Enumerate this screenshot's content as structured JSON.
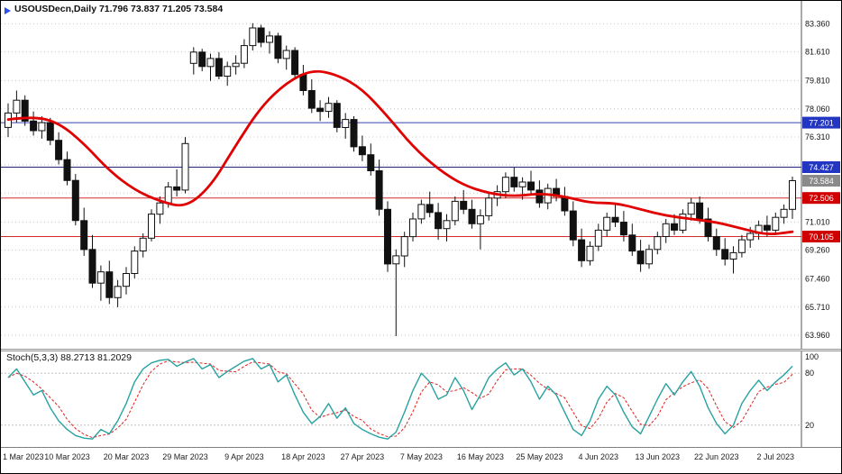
{
  "window": {
    "background": "#ffffff",
    "border": "#000000"
  },
  "header": {
    "title": "USOUSDecn,Daily",
    "values": "71.796 73.837 71.205 73.584",
    "marker_color": "#2b50f0"
  },
  "indicator_label": {
    "name": "Stoch(5,3,3)",
    "main_value": "88.2713",
    "signal_value": "81.2029"
  },
  "chart_data": [
    {
      "type": "candlestick",
      "title": "USOUSDecn,Daily",
      "ohlc_display": {
        "open": "71.796",
        "high": "73.837",
        "low": "71.205",
        "close": "73.584"
      },
      "ylim": [
        63.45,
        84.45
      ],
      "grid_on": true,
      "grid_values": [
        83.36,
        81.61,
        79.81,
        78.06,
        76.31,
        74.56,
        72.81,
        71.01,
        69.26,
        67.46,
        65.71,
        63.96
      ],
      "colors": {
        "bull": "#ffffff",
        "bear": "#111111",
        "outline": "#111111",
        "grid": "#c9c9c9",
        "axis": "#555555",
        "ma": "#e00000"
      },
      "price_axis_ticks": [
        {
          "label": "83.360",
          "value": 83.36
        },
        {
          "label": "81.610",
          "value": 81.61
        },
        {
          "label": "79.810",
          "value": 79.81
        },
        {
          "label": "78.060",
          "value": 78.06
        },
        {
          "label": "76.310",
          "value": 76.31
        },
        {
          "label": "71.010",
          "value": 71.01
        },
        {
          "label": "69.260",
          "value": 69.26
        },
        {
          "label": "67.460",
          "value": 67.46
        },
        {
          "label": "65.710",
          "value": 65.71
        },
        {
          "label": "63.960",
          "value": 63.96
        }
      ],
      "price_badges": [
        {
          "label": "77.201",
          "value": 77.201,
          "bg": "#2236c2",
          "fg": "#ffffff"
        },
        {
          "label": "74.427",
          "value": 74.427,
          "bg": "#2236c2",
          "fg": "#ffffff"
        },
        {
          "label": "73.584",
          "value": 73.584,
          "bg": "#8a8a8a",
          "fg": "#ffffff"
        },
        {
          "label": "72.506",
          "value": 72.506,
          "bg": "#d10000",
          "fg": "#ffffff"
        },
        {
          "label": "70.105",
          "value": 70.105,
          "bg": "#d10000",
          "fg": "#ffffff"
        }
      ],
      "hlines": [
        {
          "value": 77.201,
          "color": "#3a43b5"
        },
        {
          "value": 74.427,
          "color": "#23237d"
        },
        {
          "value": 72.506,
          "color": "#d42a2a"
        },
        {
          "value": 70.105,
          "color": "#d42a2a"
        }
      ],
      "x_labels": [
        {
          "label": "1 Mar 2023",
          "index": 0
        },
        {
          "label": "10 Mar 2023",
          "index": 7
        },
        {
          "label": "20 Mar 2023",
          "index": 14
        },
        {
          "label": "29 Mar 2023",
          "index": 21
        },
        {
          "label": "9 Apr 2023",
          "index": 28
        },
        {
          "label": "18 Apr 2023",
          "index": 35
        },
        {
          "label": "27 Apr 2023",
          "index": 42
        },
        {
          "label": "7 May 2023",
          "index": 49
        },
        {
          "label": "16 May 2023",
          "index": 56
        },
        {
          "label": "25 May 2023",
          "index": 63
        },
        {
          "label": "4 Jun 2023",
          "index": 70
        },
        {
          "label": "13 Jun 2023",
          "index": 77
        },
        {
          "label": "22 Jun 2023",
          "index": 84
        },
        {
          "label": "2 Jul 2023",
          "index": 91
        }
      ],
      "candles": [
        [
          76.9,
          78.4,
          76.3,
          77.8
        ],
        [
          77.8,
          79.2,
          77.2,
          78.6
        ],
        [
          78.6,
          78.9,
          77.0,
          77.3
        ],
        [
          77.3,
          77.9,
          76.4,
          76.7
        ],
        [
          76.7,
          77.6,
          76.2,
          77.2
        ],
        [
          77.2,
          77.5,
          75.8,
          76.1
        ],
        [
          76.1,
          76.6,
          74.6,
          74.9
        ],
        [
          74.9,
          75.4,
          73.3,
          73.6
        ],
        [
          73.6,
          74.0,
          70.8,
          71.1
        ],
        [
          71.1,
          71.9,
          68.9,
          69.3
        ],
        [
          69.3,
          70.2,
          66.9,
          67.2
        ],
        [
          67.2,
          68.3,
          66.1,
          67.9
        ],
        [
          67.9,
          68.6,
          65.9,
          66.3
        ],
        [
          66.3,
          67.4,
          65.7,
          67.0
        ],
        [
          67.0,
          68.2,
          66.5,
          67.8
        ],
        [
          67.8,
          69.5,
          67.5,
          69.2
        ],
        [
          69.2,
          70.3,
          68.8,
          70.0
        ],
        [
          70.0,
          71.8,
          69.8,
          71.5
        ],
        [
          71.5,
          72.6,
          70.9,
          72.2
        ],
        [
          72.2,
          73.5,
          71.9,
          73.2
        ],
        [
          73.2,
          74.3,
          72.6,
          73.0
        ],
        [
          73.0,
          76.3,
          72.8,
          75.9
        ],
        [
          80.9,
          81.9,
          80.2,
          81.6
        ],
        [
          81.6,
          81.8,
          80.4,
          80.7
        ],
        [
          80.7,
          81.5,
          79.8,
          81.2
        ],
        [
          81.2,
          81.6,
          79.9,
          80.1
        ],
        [
          80.1,
          81.0,
          79.5,
          80.7
        ],
        [
          80.7,
          81.4,
          80.2,
          80.9
        ],
        [
          80.9,
          82.4,
          80.6,
          82.0
        ],
        [
          82.0,
          83.4,
          81.7,
          83.1
        ],
        [
          83.1,
          83.3,
          81.9,
          82.2
        ],
        [
          82.2,
          82.9,
          81.5,
          82.6
        ],
        [
          82.6,
          82.8,
          80.9,
          81.2
        ],
        [
          81.2,
          82.0,
          80.5,
          81.7
        ],
        [
          81.7,
          81.9,
          79.9,
          80.2
        ],
        [
          80.2,
          80.8,
          78.9,
          79.2
        ],
        [
          79.2,
          79.9,
          77.8,
          78.1
        ],
        [
          78.1,
          78.6,
          77.3,
          77.9
        ],
        [
          77.9,
          78.8,
          77.5,
          78.4
        ],
        [
          78.4,
          78.6,
          76.6,
          76.9
        ],
        [
          76.9,
          77.8,
          76.2,
          77.4
        ],
        [
          77.4,
          77.6,
          75.4,
          75.7
        ],
        [
          75.7,
          76.4,
          74.8,
          75.2
        ],
        [
          75.2,
          75.9,
          73.9,
          74.2
        ],
        [
          74.2,
          74.9,
          71.4,
          71.8
        ],
        [
          71.8,
          72.3,
          67.9,
          68.4
        ],
        [
          68.4,
          69.3,
          63.9,
          68.9
        ],
        [
          68.9,
          70.4,
          68.2,
          70.1
        ],
        [
          70.1,
          71.6,
          69.8,
          71.2
        ],
        [
          71.2,
          72.4,
          70.9,
          72.1
        ],
        [
          72.1,
          72.9,
          71.3,
          71.6
        ],
        [
          71.6,
          72.2,
          69.9,
          70.6
        ],
        [
          70.6,
          71.5,
          69.8,
          71.1
        ],
        [
          71.1,
          72.6,
          70.8,
          72.3
        ],
        [
          72.3,
          73.0,
          71.5,
          71.8
        ],
        [
          71.8,
          72.4,
          70.6,
          70.9
        ],
        [
          70.9,
          71.8,
          69.3,
          71.4
        ],
        [
          71.4,
          72.8,
          71.1,
          72.5
        ],
        [
          72.5,
          73.3,
          72.0,
          72.9
        ],
        [
          72.9,
          74.1,
          72.5,
          73.8
        ],
        [
          73.8,
          74.4,
          72.9,
          73.2
        ],
        [
          73.2,
          73.8,
          72.4,
          73.5
        ],
        [
          73.5,
          74.2,
          72.8,
          73.0
        ],
        [
          73.0,
          73.6,
          71.9,
          72.2
        ],
        [
          72.2,
          73.4,
          71.8,
          73.1
        ],
        [
          73.1,
          73.7,
          72.3,
          72.6
        ],
        [
          72.6,
          73.2,
          71.4,
          71.7
        ],
        [
          71.7,
          72.3,
          69.5,
          69.9
        ],
        [
          69.9,
          70.6,
          68.2,
          68.6
        ],
        [
          68.6,
          69.8,
          68.3,
          69.5
        ],
        [
          69.5,
          70.9,
          69.2,
          70.5
        ],
        [
          70.5,
          71.6,
          70.1,
          71.3
        ],
        [
          71.3,
          72.1,
          70.7,
          71.0
        ],
        [
          71.0,
          71.7,
          69.8,
          70.2
        ],
        [
          70.2,
          70.9,
          68.9,
          69.2
        ],
        [
          69.2,
          69.9,
          67.9,
          68.4
        ],
        [
          68.4,
          69.6,
          68.1,
          69.3
        ],
        [
          69.3,
          70.4,
          69.0,
          70.1
        ],
        [
          70.1,
          71.2,
          69.7,
          70.9
        ],
        [
          70.9,
          71.5,
          70.2,
          70.5
        ],
        [
          70.5,
          71.8,
          70.3,
          71.5
        ],
        [
          71.5,
          72.5,
          71.1,
          72.2
        ],
        [
          72.2,
          72.6,
          70.9,
          71.2
        ],
        [
          71.2,
          71.9,
          69.8,
          70.1
        ],
        [
          70.1,
          70.6,
          68.9,
          69.3
        ],
        [
          69.3,
          70.0,
          68.3,
          68.7
        ],
        [
          68.7,
          69.5,
          67.8,
          69.1
        ],
        [
          69.1,
          70.2,
          68.8,
          69.9
        ],
        [
          69.9,
          70.7,
          69.4,
          70.3
        ],
        [
          70.3,
          71.1,
          69.9,
          70.8
        ],
        [
          70.8,
          71.4,
          70.1,
          70.5
        ],
        [
          70.5,
          71.6,
          70.2,
          71.3
        ],
        [
          71.3,
          72.1,
          70.9,
          71.8
        ],
        [
          71.796,
          73.837,
          71.205,
          73.584
        ]
      ],
      "ma": {
        "name": "smoothed-moving-average",
        "color": "#e00000",
        "points": [
          [
            0,
            77.4
          ],
          [
            3,
            77.6
          ],
          [
            6,
            77.2
          ],
          [
            9,
            75.9
          ],
          [
            12,
            74.2
          ],
          [
            15,
            73.0
          ],
          [
            18,
            72.3
          ],
          [
            21,
            71.9
          ],
          [
            24,
            73.2
          ],
          [
            27,
            75.8
          ],
          [
            30,
            78.2
          ],
          [
            33,
            79.7
          ],
          [
            36,
            80.5
          ],
          [
            39,
            80.2
          ],
          [
            42,
            79.3
          ],
          [
            45,
            77.6
          ],
          [
            48,
            75.7
          ],
          [
            51,
            74.3
          ],
          [
            54,
            73.3
          ],
          [
            57,
            72.8
          ],
          [
            60,
            72.6
          ],
          [
            63,
            72.8
          ],
          [
            66,
            72.6
          ],
          [
            69,
            72.2
          ],
          [
            72,
            72.2
          ],
          [
            75,
            71.8
          ],
          [
            78,
            71.4
          ],
          [
            81,
            71.2
          ],
          [
            84,
            71.0
          ],
          [
            87,
            70.6
          ],
          [
            90,
            70.2
          ],
          [
            93,
            70.4
          ]
        ]
      }
    },
    {
      "type": "line",
      "name": "Stochastic Oscillator",
      "label": "Stoch(5,3,3)",
      "main_value": 88.2713,
      "signal_value": 81.2029,
      "ylim": [
        0,
        100
      ],
      "levels": [
        80,
        20
      ],
      "axis_labels": [
        {
          "label": "100",
          "value": 100
        },
        {
          "label": "80",
          "value": 80
        },
        {
          "label": "20",
          "value": 20
        }
      ],
      "colors": {
        "main": "#27a1a1",
        "signal": "#e02020",
        "level": "#c0c0c0",
        "axis": "#555555"
      },
      "main": [
        75,
        85,
        70,
        55,
        60,
        40,
        25,
        15,
        8,
        5,
        4,
        15,
        10,
        25,
        45,
        70,
        85,
        92,
        95,
        96,
        88,
        93,
        97,
        85,
        90,
        75,
        82,
        88,
        94,
        97,
        85,
        90,
        70,
        78,
        55,
        35,
        22,
        30,
        45,
        28,
        40,
        22,
        15,
        10,
        6,
        4,
        12,
        35,
        60,
        80,
        70,
        50,
        55,
        75,
        60,
        38,
        55,
        75,
        85,
        92,
        78,
        85,
        70,
        50,
        65,
        55,
        35,
        15,
        8,
        25,
        50,
        65,
        55,
        35,
        18,
        10,
        30,
        50,
        68,
        55,
        70,
        82,
        65,
        40,
        22,
        10,
        20,
        45,
        60,
        72,
        60,
        70,
        78,
        88.27
      ],
      "signal_smoothing": 3
    }
  ]
}
